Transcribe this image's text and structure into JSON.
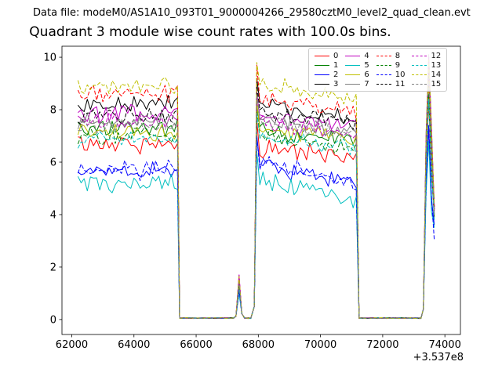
{
  "header": {
    "data_file": "Data file: modeM0/AS1A10_093T01_9000004266_29580cztM0_level2_quad_clean.evt"
  },
  "chart_data": {
    "type": "line",
    "title": "Quadrant 3 module wise count rates with 100.0s bins.",
    "legend_position": "upper right",
    "axes": {
      "xlim": [
        61685,
        74500
      ],
      "ylim": [
        -0.57,
        10.42
      ],
      "xticks": [
        62000,
        64000,
        66000,
        68000,
        70000,
        72000,
        74000
      ],
      "yticks": [
        0,
        2,
        4,
        6,
        8,
        10
      ],
      "x_offset_label": "+3.537e8",
      "grid": false
    },
    "bin_width_units": 100,
    "segments": {
      "gap_level": 0.04,
      "region1": {
        "start": 62200,
        "end": 65400
      },
      "gap1": {
        "start": 65500,
        "end": 67200
      },
      "bump": {
        "start": 67280,
        "peak_x": 67380,
        "end": 67470
      },
      "gap2": {
        "start": 67560,
        "end": 67800
      },
      "rise_foot_x": 67870,
      "overshoot_x": 67950,
      "region2": {
        "start": 68050,
        "end": 71150
      },
      "gap3": {
        "start": 71330,
        "end": 73230
      },
      "flare": {
        "start": 73310,
        "peak_x": 73480,
        "end": 73660
      }
    },
    "series": [
      {
        "label": "0",
        "color": "#ff0000",
        "linestyle": "solid",
        "level1": 6.7,
        "level2_start": 6.5,
        "level2_end": 6.2,
        "bump_peak": 1.3,
        "overshoot": 7.6,
        "final_peak": 8.3,
        "final_end": 3.9
      },
      {
        "label": "1",
        "color": "#008000",
        "linestyle": "solid",
        "level1": 7.3,
        "level2_start": 7.2,
        "level2_end": 6.8,
        "bump_peak": 1.4,
        "overshoot": 8.2,
        "final_peak": 8.9,
        "final_end": 4.0
      },
      {
        "label": "2",
        "color": "#0000ff",
        "linestyle": "solid",
        "level1": 5.7,
        "level2_start": 5.9,
        "level2_end": 5.1,
        "bump_peak": 1.1,
        "overshoot": 7.0,
        "final_peak": 7.3,
        "final_end": 3.6
      },
      {
        "label": "3",
        "color": "#000000",
        "linestyle": "solid",
        "level1": 8.2,
        "level2_start": 8.2,
        "level2_end": 7.6,
        "bump_peak": 1.55,
        "overshoot": 9.2,
        "final_peak": 9.8,
        "final_end": 4.3
      },
      {
        "label": "4",
        "color": "#bf00bf",
        "linestyle": "solid",
        "level1": 7.9,
        "level2_start": 7.7,
        "level2_end": 7.4,
        "bump_peak": 1.7,
        "overshoot": 8.7,
        "final_peak": 9.5,
        "final_end": 4.2
      },
      {
        "label": "5",
        "color": "#00bfbf",
        "linestyle": "solid",
        "level1": 5.2,
        "level2_start": 5.3,
        "level2_end": 4.6,
        "bump_peak": 1.0,
        "overshoot": 6.4,
        "final_peak": 6.8,
        "final_end": 3.5
      },
      {
        "label": "6",
        "color": "#bfbf00",
        "linestyle": "solid",
        "level1": 7.1,
        "level2_start": 7.3,
        "level2_end": 6.9,
        "bump_peak": 1.35,
        "overshoot": 8.3,
        "final_peak": 8.7,
        "final_end": 4.0
      },
      {
        "label": "7",
        "color": "#808080",
        "linestyle": "solid",
        "level1": 7.5,
        "level2_start": 7.6,
        "level2_end": 7.2,
        "bump_peak": 1.4,
        "overshoot": 8.6,
        "final_peak": 10.1,
        "final_end": 4.1
      },
      {
        "label": "8",
        "color": "#ff0000",
        "linestyle": "dashed",
        "level1": 8.6,
        "level2_start": 8.4,
        "level2_end": 7.9,
        "bump_peak": 1.6,
        "overshoot": 9.7,
        "final_peak": 9.6,
        "final_end": 4.3
      },
      {
        "label": "9",
        "color": "#008000",
        "linestyle": "dashed",
        "level1": 7.0,
        "level2_start": 7.0,
        "level2_end": 6.6,
        "bump_peak": 1.3,
        "overshoot": 8.0,
        "final_peak": 8.6,
        "final_end": 3.9
      },
      {
        "label": "10",
        "color": "#0000ff",
        "linestyle": "dashed",
        "level1": 5.7,
        "level2_start": 6.0,
        "level2_end": 5.2,
        "bump_peak": 1.1,
        "overshoot": 7.0,
        "final_peak": 7.4,
        "final_end": 3.0
      },
      {
        "label": "11",
        "color": "#000000",
        "linestyle": "dashed",
        "level1": 7.8,
        "level2_start": 7.9,
        "level2_end": 7.5,
        "bump_peak": 1.5,
        "overshoot": 8.9,
        "final_peak": 9.4,
        "final_end": 4.2
      },
      {
        "label": "12",
        "color": "#bf00bf",
        "linestyle": "dashed",
        "level1": 7.6,
        "level2_start": 7.5,
        "level2_end": 7.1,
        "bump_peak": 1.7,
        "overshoot": 8.5,
        "final_peak": 10.0,
        "final_end": 4.1
      },
      {
        "label": "13",
        "color": "#00bfbf",
        "linestyle": "dashed",
        "level1": 6.9,
        "level2_start": 6.9,
        "level2_end": 6.5,
        "bump_peak": 1.3,
        "overshoot": 7.9,
        "final_peak": 8.4,
        "final_end": 3.8
      },
      {
        "label": "14",
        "color": "#bfbf00",
        "linestyle": "dashed",
        "level1": 8.9,
        "level2_start": 9.0,
        "level2_end": 8.3,
        "bump_peak": 1.65,
        "overshoot": 9.8,
        "final_peak": 9.9,
        "final_end": 4.4
      },
      {
        "label": "15",
        "color": "#808080",
        "linestyle": "dashed",
        "level1": 7.4,
        "level2_start": 7.5,
        "level2_end": 7.1,
        "bump_peak": 1.4,
        "overshoot": 8.5,
        "final_peak": 9.2,
        "final_end": 4.0
      }
    ]
  }
}
